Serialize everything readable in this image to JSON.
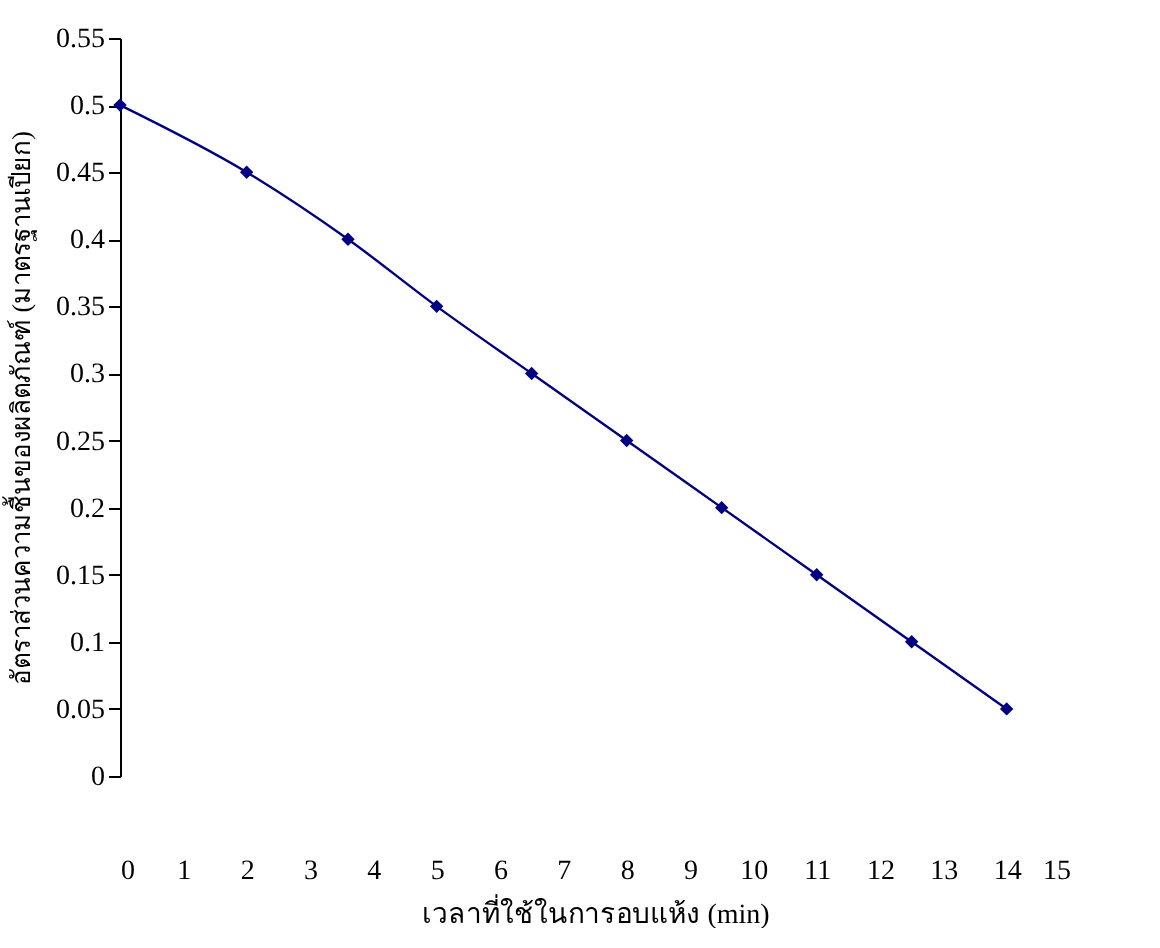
{
  "chart_data": {
    "type": "line",
    "xlabel": "เวลาที่ใช้ในการอบแห้ง (min)",
    "ylabel": "อัตราส่วนความชื้นของผลิตภัณฑ์ (มาตรฐานเปียก)",
    "x": [
      0,
      2,
      3.6,
      5,
      6.5,
      8,
      9.5,
      11,
      12.5,
      14
    ],
    "series": [
      {
        "color": "#000080",
        "values": [
          0.5,
          0.45,
          0.4,
          0.35,
          0.3,
          0.25,
          0.2,
          0.15,
          0.1,
          0.05
        ]
      }
    ],
    "xlim": [
      0,
      15
    ],
    "xticks": [
      0,
      1,
      2,
      3,
      4,
      5,
      6,
      7,
      8,
      9,
      10,
      11,
      12,
      13,
      14,
      15
    ],
    "ylim": [
      0,
      0.55
    ],
    "yticks": [
      0,
      0.05,
      0.1,
      0.15,
      0.2,
      0.25,
      0.3,
      0.35,
      0.4,
      0.45,
      0.5,
      0.55
    ],
    "grid": false,
    "marker": "diamond",
    "line_style": "solid"
  }
}
